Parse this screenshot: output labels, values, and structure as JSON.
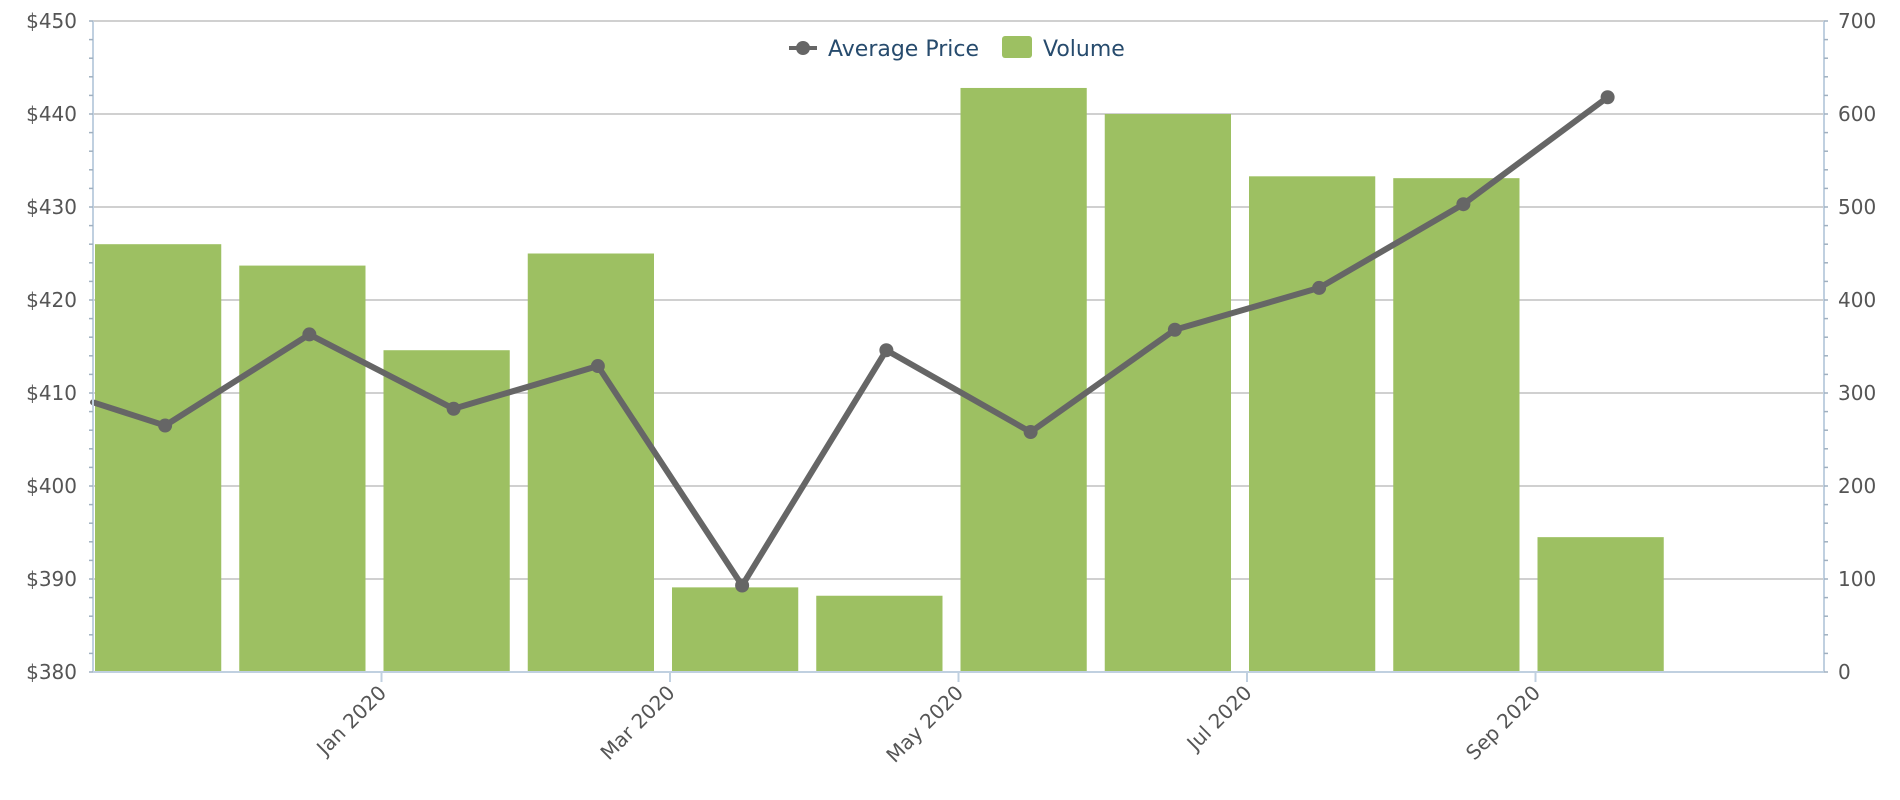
{
  "chart_data": {
    "type": "bar+line",
    "legend": [
      {
        "name": "Average Price",
        "kind": "line",
        "color": "#666666"
      },
      {
        "name": "Volume",
        "kind": "bar",
        "color": "#9dc062"
      }
    ],
    "legend_position": "top-center",
    "x_tick_labels": [
      "Jan 2020",
      "Mar 2020",
      "May 2020",
      "Jul 2020",
      "Sep 2020"
    ],
    "months": [
      "2019-11",
      "2019-12",
      "2020-01",
      "2020-02",
      "2020-03",
      "2020-04",
      "2020-05",
      "2020-06",
      "2020-07",
      "2020-08",
      "2020-09",
      "2020-10"
    ],
    "series": [
      {
        "name": "Volume",
        "type": "bar",
        "axis": "right",
        "color": "#9dc062",
        "values": [
          460,
          437,
          346,
          450,
          91,
          82,
          628,
          600,
          533,
          531,
          145
        ]
      },
      {
        "name": "Average Price",
        "type": "line",
        "axis": "left",
        "color": "#666666",
        "values": [
          406.5,
          416.3,
          408.3,
          412.9,
          389.3,
          414.6,
          405.8,
          416.8,
          421.3,
          430.3,
          441.8
        ]
      }
    ],
    "bar_months": [
      "2019-11",
      "2019-12",
      "2020-01",
      "2020-02",
      "2020-03",
      "2020-04",
      "2020-05",
      "2020-06",
      "2020-07",
      "2020-08",
      "2020-09"
    ],
    "line_months": [
      "2019-11",
      "2019-12",
      "2020-01",
      "2020-02",
      "2020-03",
      "2020-04",
      "2020-05",
      "2020-06",
      "2020-07",
      "2020-08",
      "2020-09"
    ],
    "left_axis": {
      "min": 380,
      "max": 450,
      "step": 10,
      "prefix": "$",
      "tick_labels": [
        "$380",
        "$390",
        "$400",
        "$410",
        "$420",
        "$430",
        "$440",
        "$450"
      ]
    },
    "right_axis": {
      "min": 0,
      "max": 700,
      "step": 100,
      "tick_labels": [
        "0",
        "100",
        "200",
        "300",
        "400",
        "500",
        "600",
        "700"
      ]
    },
    "line_left_edge_value": 409,
    "grid": true
  }
}
